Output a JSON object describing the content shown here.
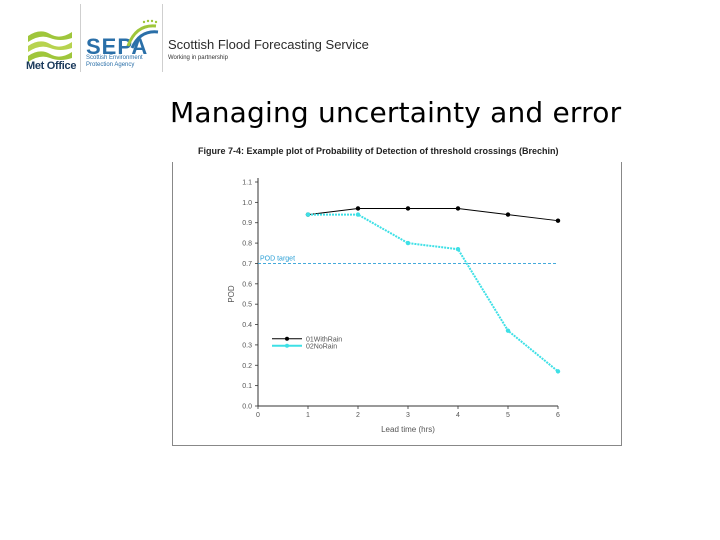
{
  "header": {
    "metoffice_label": "Met Office",
    "sepa_label": "SEPA",
    "sepa_subtitle_line1": "Scottish Environment",
    "sepa_subtitle_line2": "Protection Agency",
    "service_title": "Scottish Flood Forecasting Service",
    "service_subtitle": "Working in partnership"
  },
  "slide": {
    "title": "Managing uncertainty and error"
  },
  "figure": {
    "caption": "Figure 7-4: Example plot of Probability of Detection of threshold crossings (Brechin)"
  },
  "colors": {
    "series1": "#000000",
    "series2": "#3ee0e6",
    "threshold": "#2a9fd6",
    "sepa_blue": "#2a6fa8",
    "metoffice_green": "#9fc63b"
  },
  "chart_data": {
    "type": "line",
    "xlabel": "Lead time (hrs)",
    "ylabel": "POD",
    "xlim": [
      0,
      6
    ],
    "ylim": [
      0.0,
      1.1
    ],
    "xticks": [
      "0",
      "1",
      "2",
      "3",
      "4",
      "5",
      "6"
    ],
    "yticks": [
      "0.0",
      "0.1",
      "0.2",
      "0.3",
      "0.4",
      "0.5",
      "0.6",
      "0.7",
      "0.8",
      "0.9",
      "1.0",
      "1.1"
    ],
    "x": [
      1,
      2,
      3,
      4,
      5,
      6
    ],
    "series": [
      {
        "name": "01WithRain",
        "values": [
          0.94,
          0.97,
          0.97,
          0.97,
          0.94,
          0.91
        ]
      },
      {
        "name": "02NoRain",
        "values": [
          0.94,
          0.94,
          0.8,
          0.77,
          0.37,
          0.17
        ]
      }
    ],
    "threshold": {
      "label": "POD target",
      "value": 0.7
    },
    "legend_position": "lower-left",
    "grid": false
  }
}
